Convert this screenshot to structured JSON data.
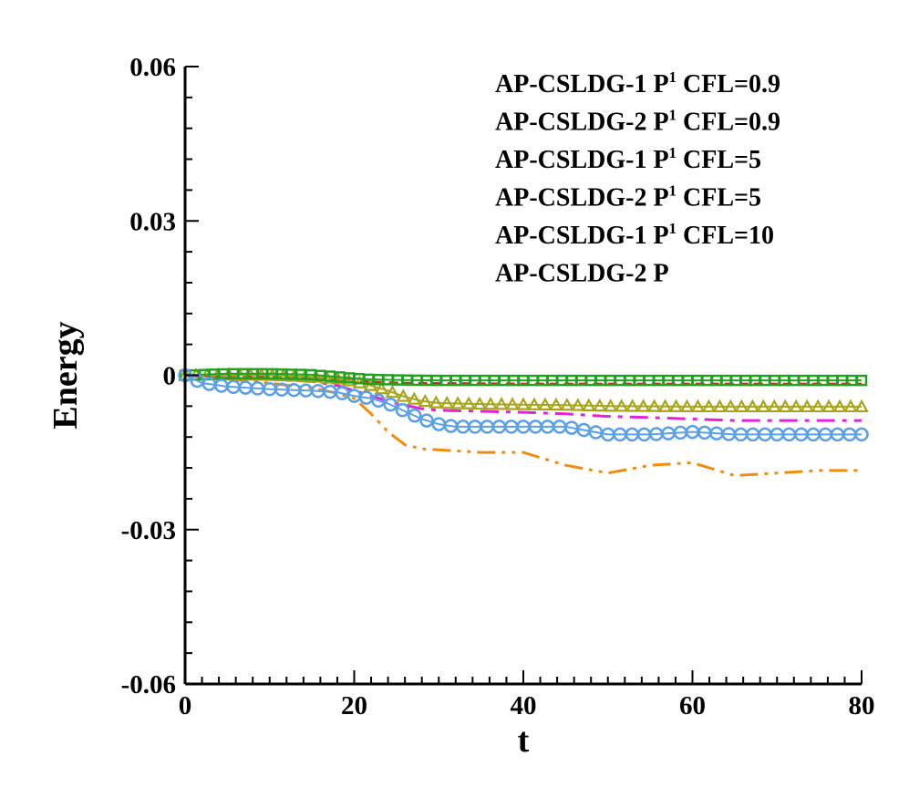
{
  "chart_data": {
    "type": "line",
    "title": "",
    "xlabel": "t",
    "ylabel": "Energy",
    "xlim": [
      0,
      80
    ],
    "ylim": [
      -0.06,
      0.06
    ],
    "xticks": [
      0,
      20,
      40,
      60,
      80
    ],
    "xtick_labels": [
      "0",
      "20",
      "40",
      "60",
      "80"
    ],
    "yticks": [
      -0.06,
      -0.03,
      0,
      0.03,
      0.06
    ],
    "ytick_labels": [
      "-0.06",
      "-0.03",
      "0",
      "0.03",
      "0.06"
    ],
    "legend_position": "top-right",
    "legend": [
      {
        "prefix": "AP-CSLDG-1 P",
        "sup": "1",
        "suffix": " CFL=0.9"
      },
      {
        "prefix": "AP-CSLDG-2 P",
        "sup": "1",
        "suffix": " CFL=0.9"
      },
      {
        "prefix": "AP-CSLDG-1 P",
        "sup": "1",
        "suffix": " CFL=5"
      },
      {
        "prefix": "AP-CSLDG-2 P",
        "sup": "1",
        "suffix": " CFL=5"
      },
      {
        "prefix": "AP-CSLDG-1 P",
        "sup": "1",
        "suffix": " CFL=10"
      },
      {
        "prefix": "AP-CSLDG-2 P",
        "sup": "",
        "suffix": ""
      }
    ],
    "series": [
      {
        "name": "AP-CSLDG-1 P1 CFL=0.9",
        "color": "#d6271f",
        "style": "dashed",
        "x": [
          0,
          5,
          10,
          15,
          18,
          20,
          22,
          25,
          30,
          40,
          50,
          60,
          70,
          80
        ],
        "y": [
          0.0,
          -0.0002,
          -0.0003,
          -0.0004,
          -0.0007,
          -0.001,
          -0.0013,
          -0.0015,
          -0.0016,
          -0.0017,
          -0.0017,
          -0.0017,
          -0.0017,
          -0.0017
        ]
      },
      {
        "name": "AP-CSLDG-2 P1 CFL=0.9",
        "color": "#22a022",
        "marker": "square",
        "x": [
          0,
          5,
          10,
          15,
          18,
          20,
          22,
          25,
          30,
          40,
          50,
          60,
          70,
          80
        ],
        "y": [
          0.0,
          0.0003,
          0.0003,
          0.0001,
          -0.0003,
          -0.0006,
          -0.0008,
          -0.0009,
          -0.001,
          -0.001,
          -0.001,
          -0.001,
          -0.001,
          -0.001
        ]
      },
      {
        "name": "AP-CSLDG-1 P1 CFL=5",
        "color": "#e024d8",
        "style": "dash-dot",
        "x": [
          0,
          5,
          10,
          15,
          18,
          20,
          22,
          25,
          28,
          30,
          35,
          40,
          45,
          50,
          55,
          60,
          65,
          70,
          75,
          80
        ],
        "y": [
          0.0,
          -0.0005,
          -0.0008,
          -0.0012,
          -0.002,
          -0.003,
          -0.004,
          -0.0055,
          -0.0065,
          -0.0068,
          -0.007,
          -0.0072,
          -0.0075,
          -0.008,
          -0.0082,
          -0.0085,
          -0.0088,
          -0.0088,
          -0.0088,
          -0.0088
        ]
      },
      {
        "name": "AP-CSLDG-2 P1 CFL=5",
        "color": "#a8a51a",
        "marker": "triangle",
        "x": [
          0,
          5,
          10,
          15,
          18,
          20,
          22,
          24,
          26,
          28,
          30,
          35,
          40,
          45,
          50,
          60,
          70,
          80
        ],
        "y": [
          0.0,
          0.0001,
          0.0,
          -0.0003,
          -0.0007,
          -0.0012,
          -0.002,
          -0.003,
          -0.0042,
          -0.005,
          -0.0054,
          -0.0056,
          -0.0057,
          -0.0058,
          -0.006,
          -0.0061,
          -0.0061,
          -0.0061
        ]
      },
      {
        "name": "AP-CSLDG-1 P1 CFL=10",
        "color": "#f28c10",
        "style": "dash-dot-dot",
        "x": [
          0,
          5,
          10,
          15,
          18,
          20,
          22,
          24,
          26,
          28,
          30,
          35,
          40,
          45,
          50,
          55,
          60,
          65,
          70,
          75,
          80
        ],
        "y": [
          0.0,
          -0.0008,
          -0.0015,
          -0.0025,
          -0.0035,
          -0.0045,
          -0.0075,
          -0.011,
          -0.0135,
          -0.0143,
          -0.0145,
          -0.015,
          -0.015,
          -0.0175,
          -0.019,
          -0.0175,
          -0.017,
          -0.0195,
          -0.019,
          -0.0185,
          -0.0185
        ]
      },
      {
        "name": "AP-CSLDG-2 P",
        "color": "#5aa0e6",
        "marker": "circle",
        "x": [
          0,
          2,
          5,
          10,
          15,
          18,
          20,
          22,
          24,
          26,
          28,
          30,
          32,
          35,
          40,
          45,
          50,
          55,
          60,
          65,
          70,
          75,
          80
        ],
        "y": [
          0.0,
          -0.0015,
          -0.0022,
          -0.0027,
          -0.003,
          -0.0033,
          -0.004,
          -0.0045,
          -0.0055,
          -0.007,
          -0.0085,
          -0.0095,
          -0.01,
          -0.01,
          -0.01,
          -0.01,
          -0.0115,
          -0.0115,
          -0.011,
          -0.0115,
          -0.0115,
          -0.0115,
          -0.0115
        ]
      }
    ]
  }
}
